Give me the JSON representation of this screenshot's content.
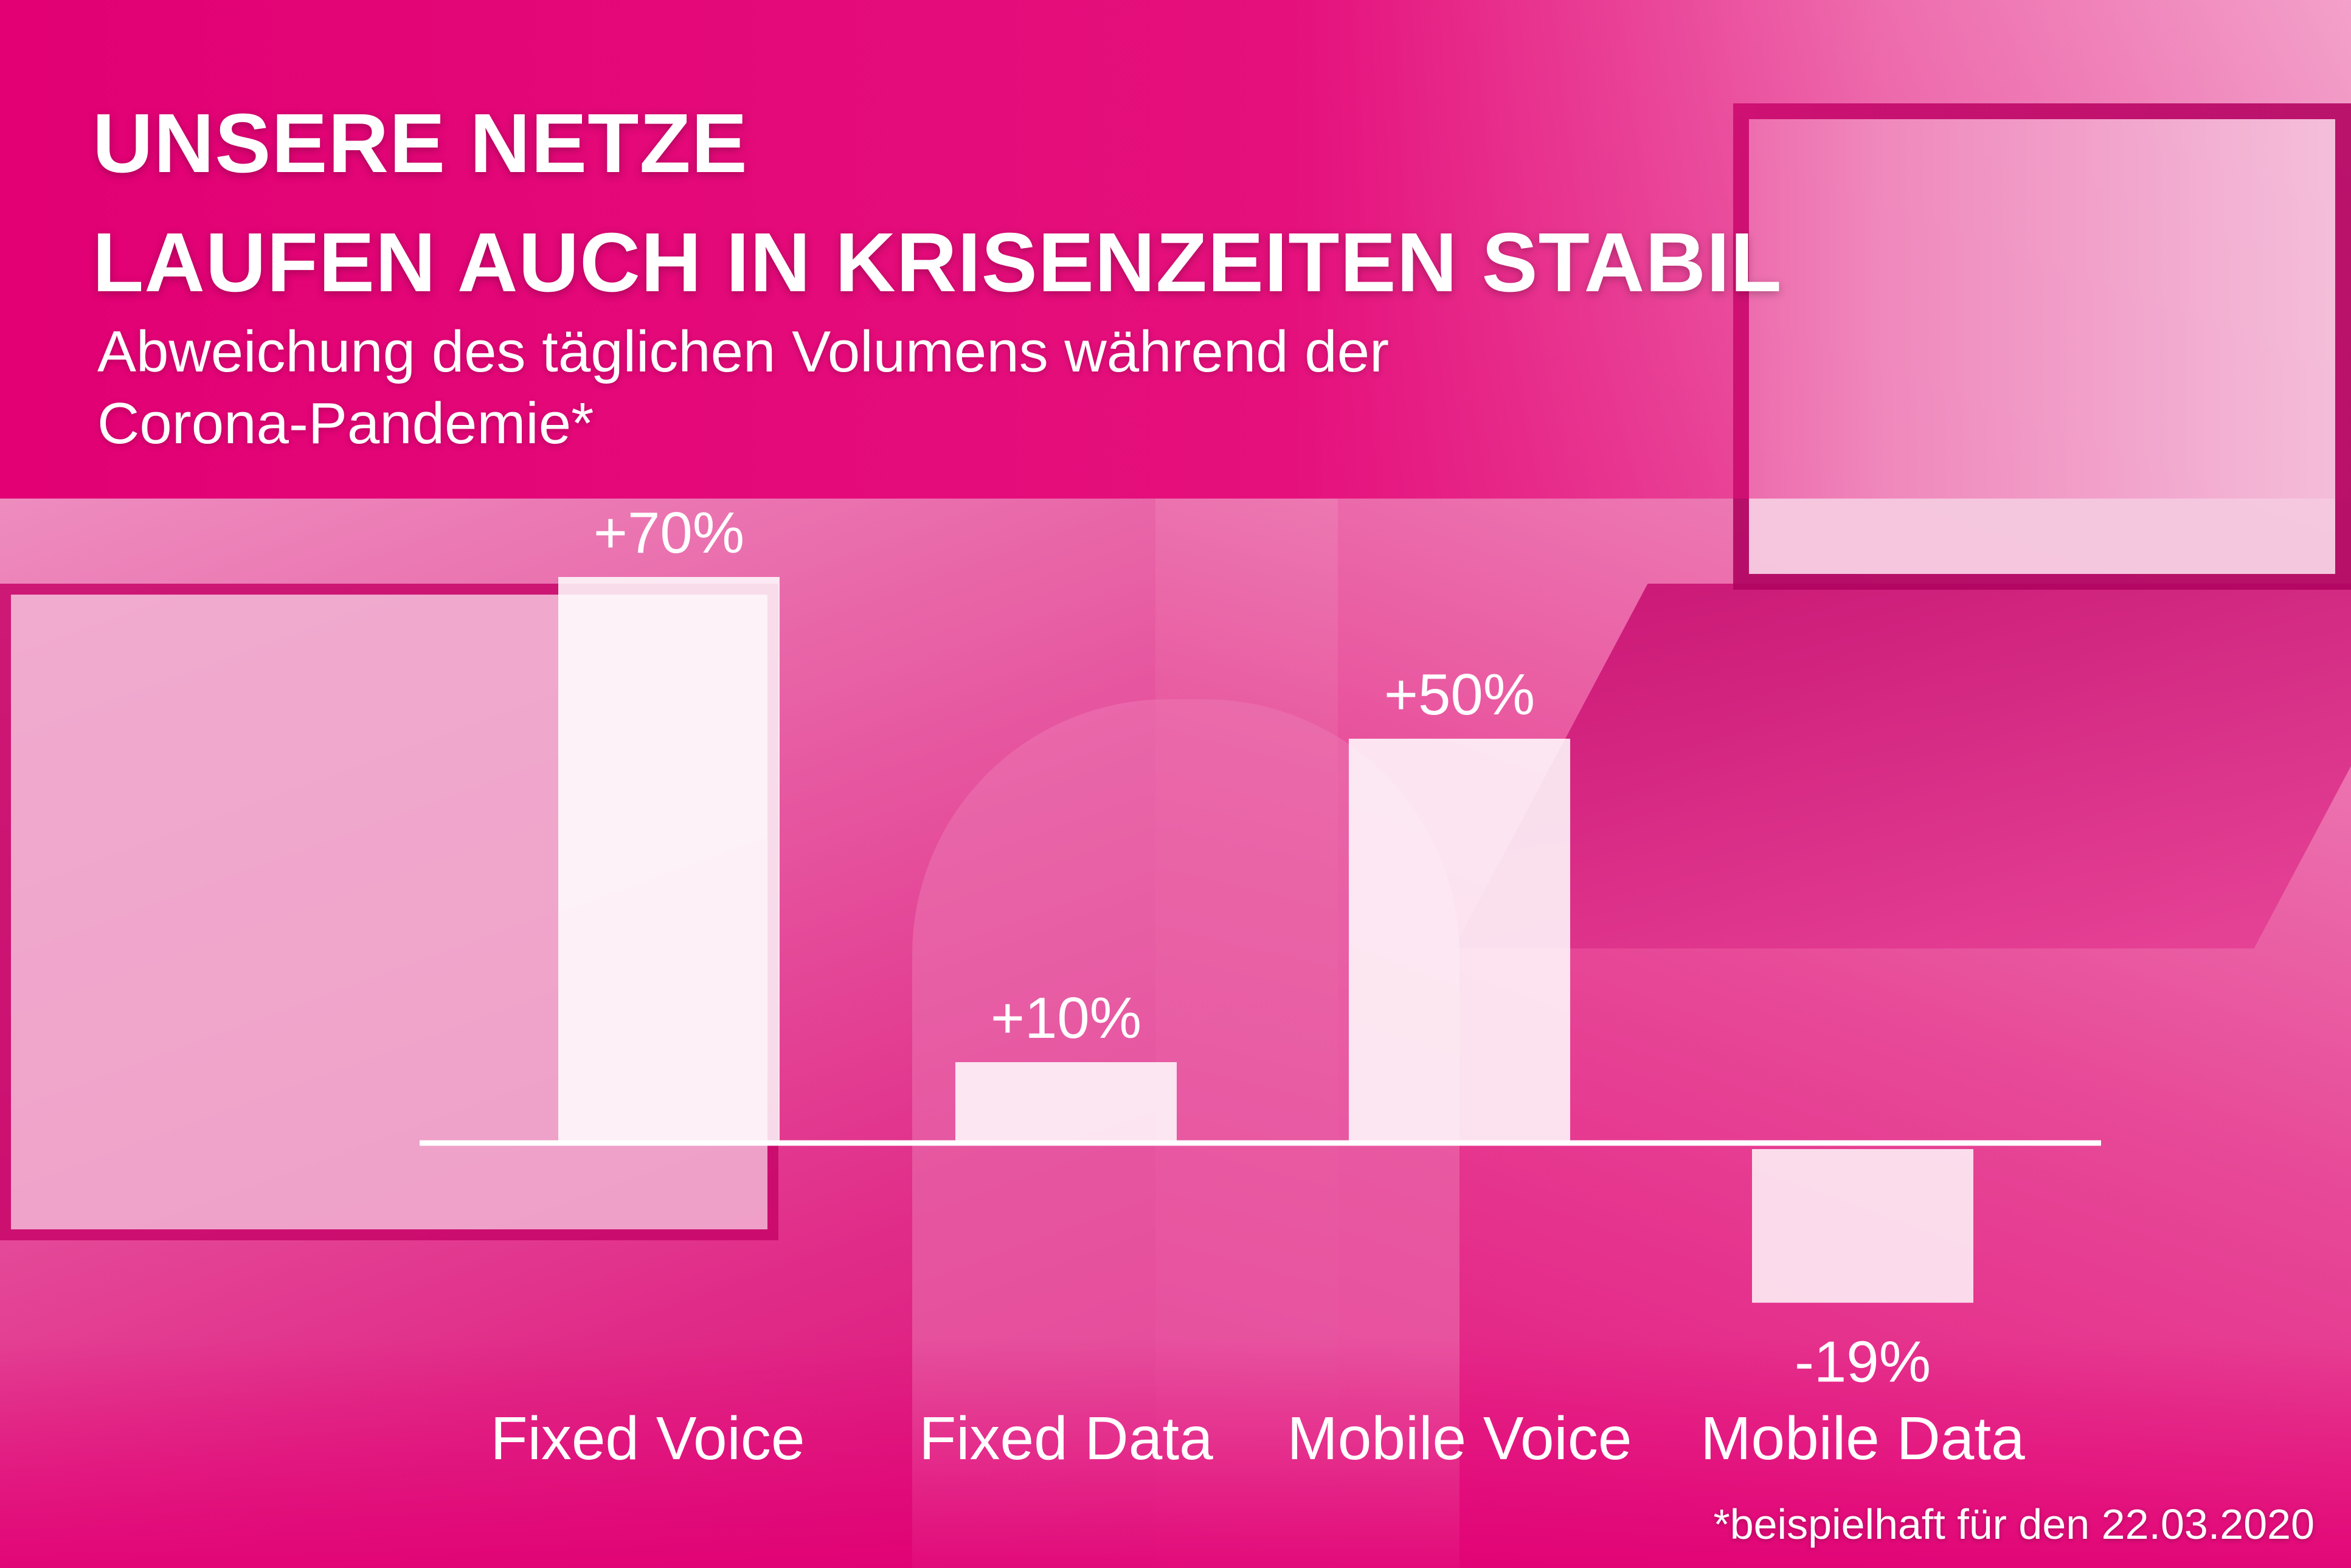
{
  "title_lines": [
    "UNSERE NETZE",
    "LAUFEN AUCH IN KRISENZEITEN STABIL"
  ],
  "subtitle_lines": [
    "Abweichung des täglichen Volumens während der",
    "Corona-Pandemie*"
  ],
  "footnote": "*beispielhaft für den 22.03.2020",
  "colors": {
    "background": "#e20074",
    "bars": "#ffffff",
    "text": "#ffffff"
  },
  "chart_data": {
    "type": "bar",
    "categories": [
      "Fixed Voice",
      "Fixed Data",
      "Mobile Voice",
      "Mobile Data"
    ],
    "values": [
      70,
      10,
      50,
      -19
    ],
    "value_labels": [
      "+70%",
      "+10%",
      "+50%",
      "-19%"
    ],
    "unit": "%",
    "grid": false,
    "legend": "none"
  }
}
